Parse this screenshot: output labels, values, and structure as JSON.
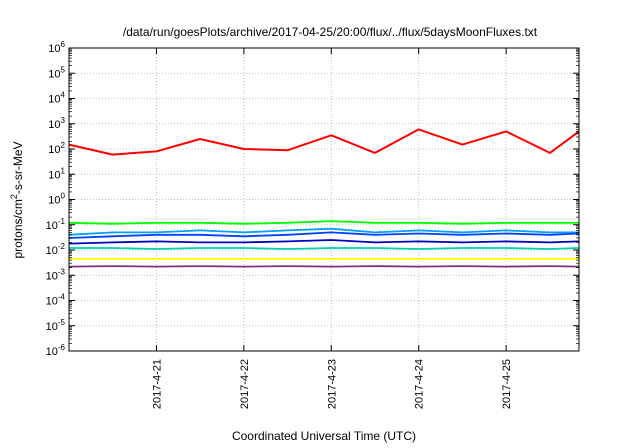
{
  "chart_data": {
    "type": "line",
    "title": "/data/run/goesPlots/archive/2017-04-25/20:00/flux/../flux/5daysMoonFluxes.txt",
    "xlabel": "Coordinated Universal Time (UTC)",
    "ylabel": "protons/cm2-s-sr-MeV",
    "yscale": "log",
    "ylim": [
      "1e-6",
      "1e6"
    ],
    "xlim": [
      "2017-04-20 00:00",
      "2017-04-25 20:00"
    ],
    "x_ticks": [
      "2017-4-21",
      "2017-4-22",
      "2017-4-23",
      "2017-4-24",
      "2017-4-25"
    ],
    "y_ticks": [
      "10^-6",
      "10^-5",
      "10^-4",
      "10^-3",
      "10^-2",
      "10^-1",
      "10^0",
      "10^1",
      "10^2",
      "10^3",
      "10^4",
      "10^5",
      "10^6"
    ],
    "grid": true,
    "legend": "none",
    "x": [
      "2017-04-20 00:00",
      "2017-04-20 12:00",
      "2017-04-21 00:00",
      "2017-04-21 12:00",
      "2017-04-22 00:00",
      "2017-04-22 12:00",
      "2017-04-23 00:00",
      "2017-04-23 12:00",
      "2017-04-24 00:00",
      "2017-04-24 12:00",
      "2017-04-25 00:00",
      "2017-04-25 12:00",
      "2017-04-25 20:00"
    ],
    "series": [
      {
        "color": "#ff0000",
        "values": [
          150,
          60,
          80,
          250,
          100,
          90,
          350,
          70,
          600,
          150,
          500,
          70,
          500
        ]
      },
      {
        "color": "#00ff00",
        "values": [
          0.12,
          0.11,
          0.12,
          0.12,
          0.11,
          0.12,
          0.14,
          0.12,
          0.12,
          0.11,
          0.12,
          0.12,
          0.12
        ]
      },
      {
        "color": "#00a0ff",
        "values": [
          0.04,
          0.05,
          0.05,
          0.06,
          0.05,
          0.06,
          0.07,
          0.05,
          0.06,
          0.05,
          0.06,
          0.05,
          0.05
        ]
      },
      {
        "color": "#0040ff",
        "values": [
          0.03,
          0.035,
          0.04,
          0.04,
          0.035,
          0.04,
          0.05,
          0.04,
          0.045,
          0.04,
          0.045,
          0.04,
          0.045
        ]
      },
      {
        "color": "#0000c0",
        "values": [
          0.018,
          0.02,
          0.022,
          0.02,
          0.02,
          0.022,
          0.025,
          0.02,
          0.022,
          0.02,
          0.022,
          0.02,
          0.022
        ]
      },
      {
        "color": "#00d0b0",
        "values": [
          0.012,
          0.012,
          0.011,
          0.012,
          0.012,
          0.011,
          0.012,
          0.012,
          0.011,
          0.012,
          0.012,
          0.011,
          0.012
        ]
      },
      {
        "color": "#ffff00",
        "values": [
          0.0045,
          0.0045,
          0.0045,
          0.0045,
          0.0045,
          0.0045,
          0.0045,
          0.0045,
          0.0045,
          0.0045,
          0.0045,
          0.0045,
          0.0045
        ]
      },
      {
        "color": "#803080",
        "values": [
          0.0022,
          0.0023,
          0.0022,
          0.0023,
          0.0022,
          0.0023,
          0.0022,
          0.0023,
          0.0022,
          0.0023,
          0.0022,
          0.0023,
          0.0022
        ]
      }
    ]
  }
}
